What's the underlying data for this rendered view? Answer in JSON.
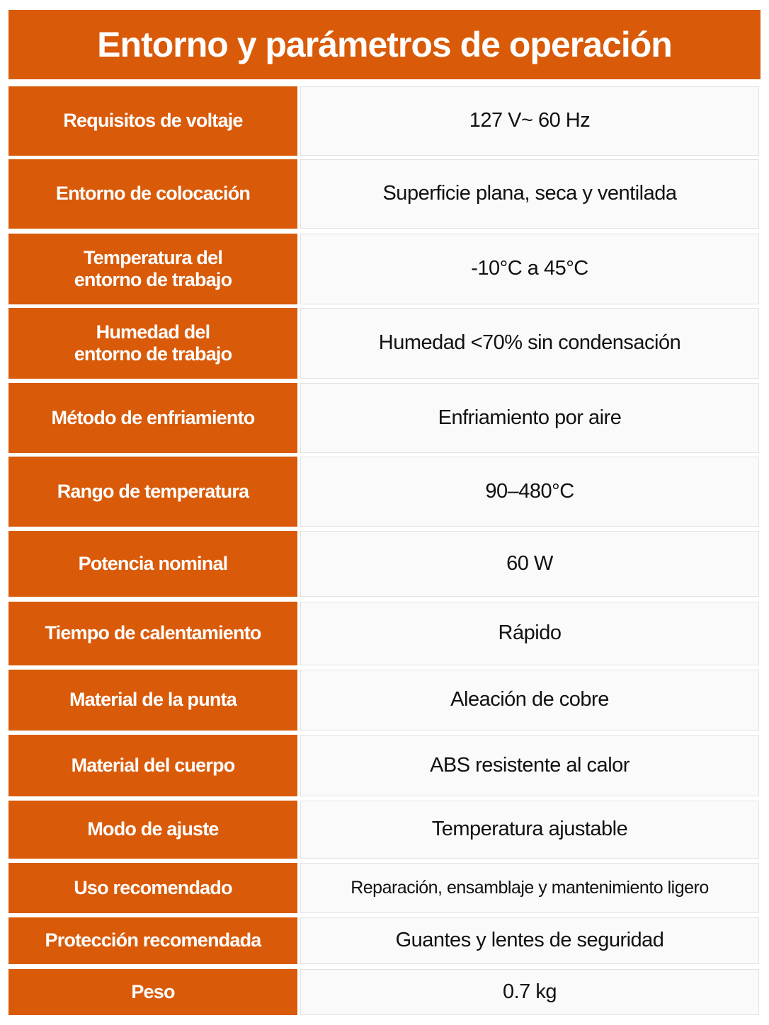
{
  "header": {
    "title": "Entorno y parámetros de operación"
  },
  "table": {
    "rows": [
      [
        "Requisitos de voltaje",
        "127 V~ 60 Hz"
      ],
      [
        "Entorno de colocación",
        "Superficie plana, seca y ventilada"
      ],
      [
        "Temperatura del\nentorno de trabajo",
        "-10°C a 45°C"
      ],
      [
        "Humedad del\nentorno de trabajo",
        "Humedad <70% sin condensación"
      ],
      [
        "Método de enfriamiento",
        "Enfriamiento por aire"
      ],
      [
        "Rango de temperatura",
        "90–480°C"
      ],
      [
        "Potencia nominal",
        "60 W"
      ],
      [
        "Tiempo de calentamiento",
        "Rápido"
      ],
      [
        "Material de la punta",
        "Aleación de cobre"
      ],
      [
        "Material del cuerpo",
        "ABS resistente al calor"
      ],
      [
        "Modo de ajuste",
        "Temperatura ajustable"
      ],
      [
        "Uso recomendado",
        "Reparación, ensamblaje y mantenimiento ligero"
      ],
      [
        "Protección recomendada",
        "Guantes y lentes de seguridad"
      ],
      [
        "Peso",
        "0.7 kg"
      ]
    ]
  }
}
